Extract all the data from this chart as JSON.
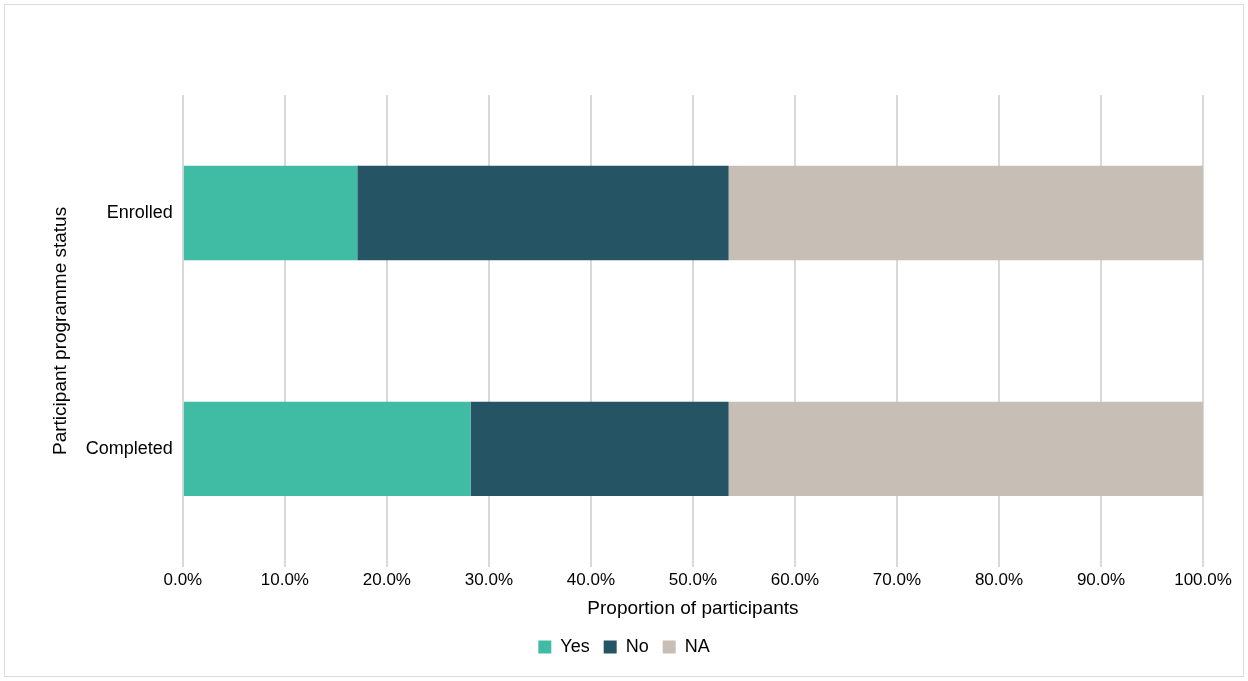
{
  "chart_data": {
    "type": "bar",
    "orientation": "horizontal",
    "stacked": true,
    "xlabel": "Proportion of participants",
    "ylabel": "Participant programme status",
    "categories": [
      "Enrolled",
      "Completed"
    ],
    "series": [
      {
        "name": "Yes",
        "color": "#41bca4",
        "values": [
          17.1,
          28.2
        ]
      },
      {
        "name": "No",
        "color": "#255565",
        "values": [
          36.4,
          25.3
        ]
      },
      {
        "name": "NA",
        "color": "#c7beb5",
        "values": [
          46.5,
          46.5
        ]
      }
    ],
    "xlim": [
      0,
      100
    ],
    "xticks": [
      {
        "value": 0,
        "label": "0.0%"
      },
      {
        "value": 10,
        "label": "10.0%"
      },
      {
        "value": 20,
        "label": "20.0%"
      },
      {
        "value": 30,
        "label": "30.0%"
      },
      {
        "value": 40,
        "label": "40.0%"
      },
      {
        "value": 50,
        "label": "50.0%"
      },
      {
        "value": 60,
        "label": "60.0%"
      },
      {
        "value": 70,
        "label": "70.0%"
      },
      {
        "value": 80,
        "label": "80.0%"
      },
      {
        "value": 90,
        "label": "90.0%"
      },
      {
        "value": 100,
        "label": "100.0%"
      }
    ],
    "grid": "x",
    "legend": "bottom"
  }
}
